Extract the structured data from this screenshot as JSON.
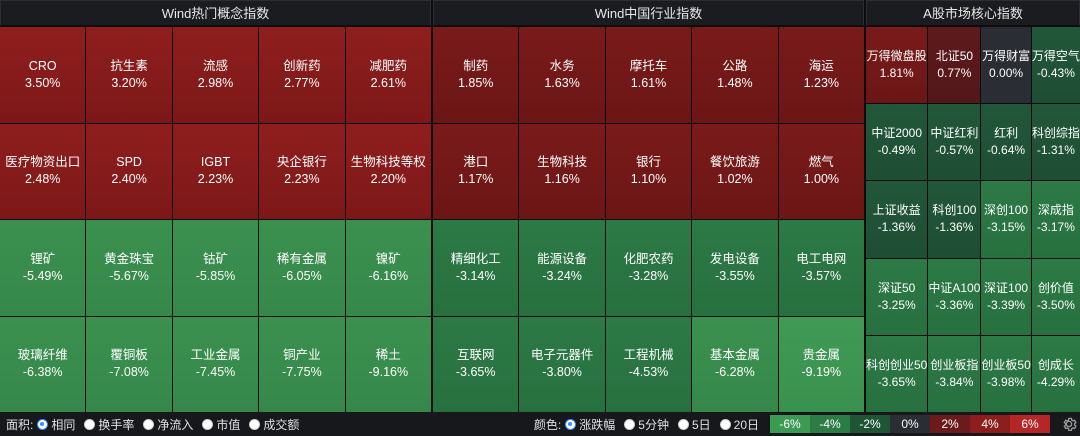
{
  "panels": {
    "concept": {
      "title": "Wind热门概念指数",
      "cells": [
        {
          "name": "CRO",
          "pct": "3.50%",
          "cls": "r3"
        },
        {
          "name": "抗生素",
          "pct": "3.20%",
          "cls": "r3"
        },
        {
          "name": "流感",
          "pct": "2.98%",
          "cls": "r3"
        },
        {
          "name": "创新药",
          "pct": "2.77%",
          "cls": "r3"
        },
        {
          "name": "减肥药",
          "pct": "2.61%",
          "cls": "r3"
        },
        {
          "name": "医疗物资出口",
          "pct": "2.48%",
          "cls": "r3"
        },
        {
          "name": "SPD",
          "pct": "2.40%",
          "cls": "r3"
        },
        {
          "name": "IGBT",
          "pct": "2.23%",
          "cls": "r3"
        },
        {
          "name": "央企银行",
          "pct": "2.23%",
          "cls": "r3"
        },
        {
          "name": "生物科技等权",
          "pct": "2.20%",
          "cls": "r3"
        },
        {
          "name": "锂矿",
          "pct": "-5.49%",
          "cls": "g3"
        },
        {
          "name": "黄金珠宝",
          "pct": "-5.67%",
          "cls": "g3"
        },
        {
          "name": "钴矿",
          "pct": "-5.85%",
          "cls": "g3"
        },
        {
          "name": "稀有金属",
          "pct": "-6.05%",
          "cls": "g3"
        },
        {
          "name": "镍矿",
          "pct": "-6.16%",
          "cls": "g3"
        },
        {
          "name": "玻璃纤维",
          "pct": "-6.38%",
          "cls": "g3"
        },
        {
          "name": "覆铜板",
          "pct": "-7.08%",
          "cls": "g3"
        },
        {
          "name": "工业金属",
          "pct": "-7.45%",
          "cls": "g3"
        },
        {
          "name": "铜产业",
          "pct": "-7.75%",
          "cls": "g3"
        },
        {
          "name": "稀土",
          "pct": "-9.16%",
          "cls": "g3"
        }
      ]
    },
    "industry": {
      "title": "Wind中国行业指数",
      "cells": [
        {
          "name": "制药",
          "pct": "1.85%",
          "cls": "r2"
        },
        {
          "name": "水务",
          "pct": "1.63%",
          "cls": "r2"
        },
        {
          "name": "摩托车",
          "pct": "1.61%",
          "cls": "r2"
        },
        {
          "name": "公路",
          "pct": "1.48%",
          "cls": "r2"
        },
        {
          "name": "海运",
          "pct": "1.23%",
          "cls": "r2"
        },
        {
          "name": "港口",
          "pct": "1.17%",
          "cls": "r2"
        },
        {
          "name": "生物科技",
          "pct": "1.16%",
          "cls": "r2"
        },
        {
          "name": "银行",
          "pct": "1.10%",
          "cls": "r2"
        },
        {
          "name": "餐饮旅游",
          "pct": "1.02%",
          "cls": "r2"
        },
        {
          "name": "燃气",
          "pct": "1.00%",
          "cls": "r2"
        },
        {
          "name": "精细化工",
          "pct": "-3.14%",
          "cls": "g2"
        },
        {
          "name": "能源设备",
          "pct": "-3.24%",
          "cls": "g2"
        },
        {
          "name": "化肥农药",
          "pct": "-3.28%",
          "cls": "g2"
        },
        {
          "name": "发电设备",
          "pct": "-3.55%",
          "cls": "g2"
        },
        {
          "name": "电工电网",
          "pct": "-3.57%",
          "cls": "g2"
        },
        {
          "name": "互联网",
          "pct": "-3.65%",
          "cls": "g2"
        },
        {
          "name": "电子元器件",
          "pct": "-3.80%",
          "cls": "g2"
        },
        {
          "name": "工程机械",
          "pct": "-4.53%",
          "cls": "g2"
        },
        {
          "name": "基本金属",
          "pct": "-6.28%",
          "cls": "g3"
        },
        {
          "name": "贵金属",
          "pct": "-9.19%",
          "cls": "g4c"
        }
      ]
    },
    "core": {
      "title": "A股市场核心指数",
      "cells": [
        {
          "name": "万得微盘股",
          "pct": "1.81%",
          "cls": "r2"
        },
        {
          "name": "北证50",
          "pct": "0.77%",
          "cls": "r1"
        },
        {
          "name": "万得财富",
          "pct": "0.00%",
          "cls": "z0"
        },
        {
          "name": "万得空气",
          "pct": "-0.43%",
          "cls": "g1"
        },
        {
          "name": "中证2000",
          "pct": "-0.49%",
          "cls": "g1"
        },
        {
          "name": "中证红利",
          "pct": "-0.57%",
          "cls": "g1"
        },
        {
          "name": "红利",
          "pct": "-0.64%",
          "cls": "g1"
        },
        {
          "name": "科创综指",
          "pct": "-1.31%",
          "cls": "g1"
        },
        {
          "name": "上证收益",
          "pct": "-1.36%",
          "cls": "g1"
        },
        {
          "name": "科创100",
          "pct": "-1.36%",
          "cls": "g1"
        },
        {
          "name": "深创100",
          "pct": "-3.15%",
          "cls": "g2"
        },
        {
          "name": "深成指",
          "pct": "-3.17%",
          "cls": "g2"
        },
        {
          "name": "深证50",
          "pct": "-3.25%",
          "cls": "g2"
        },
        {
          "name": "中证A100",
          "pct": "-3.36%",
          "cls": "g2"
        },
        {
          "name": "深证100",
          "pct": "-3.39%",
          "cls": "g2"
        },
        {
          "name": "创价值",
          "pct": "-3.50%",
          "cls": "g2"
        },
        {
          "name": "科创创业50",
          "pct": "-3.65%",
          "cls": "g2"
        },
        {
          "name": "创业板指",
          "pct": "-3.84%",
          "cls": "g2"
        },
        {
          "name": "创业板50",
          "pct": "-3.98%",
          "cls": "g2"
        },
        {
          "name": "创成长",
          "pct": "-4.29%",
          "cls": "g2"
        }
      ]
    }
  },
  "statusbar": {
    "area_label": "面积:",
    "area_options": [
      {
        "label": "相同",
        "selected": true
      },
      {
        "label": "换手率",
        "selected": false
      },
      {
        "label": "净流入",
        "selected": false
      },
      {
        "label": "市值",
        "selected": false
      },
      {
        "label": "成交额",
        "selected": false
      }
    ],
    "color_label": "颜色:",
    "color_options": [
      {
        "label": "涨跌幅",
        "selected": true
      },
      {
        "label": "5分钟",
        "selected": false
      },
      {
        "label": "5日",
        "selected": false
      },
      {
        "label": "20日",
        "selected": false
      }
    ],
    "legend": [
      {
        "label": "-6%",
        "color": "#3d9a52"
      },
      {
        "label": "-4%",
        "color": "#2b7c45"
      },
      {
        "label": "-2%",
        "color": "#1f5535"
      },
      {
        "label": "0%",
        "color": "#2a2d33"
      },
      {
        "label": "2%",
        "color": "#6b1b1b"
      },
      {
        "label": "4%",
        "color": "#8c1e1e"
      },
      {
        "label": "6%",
        "color": "#b52626"
      }
    ],
    "settings_icon": "gear-icon"
  }
}
